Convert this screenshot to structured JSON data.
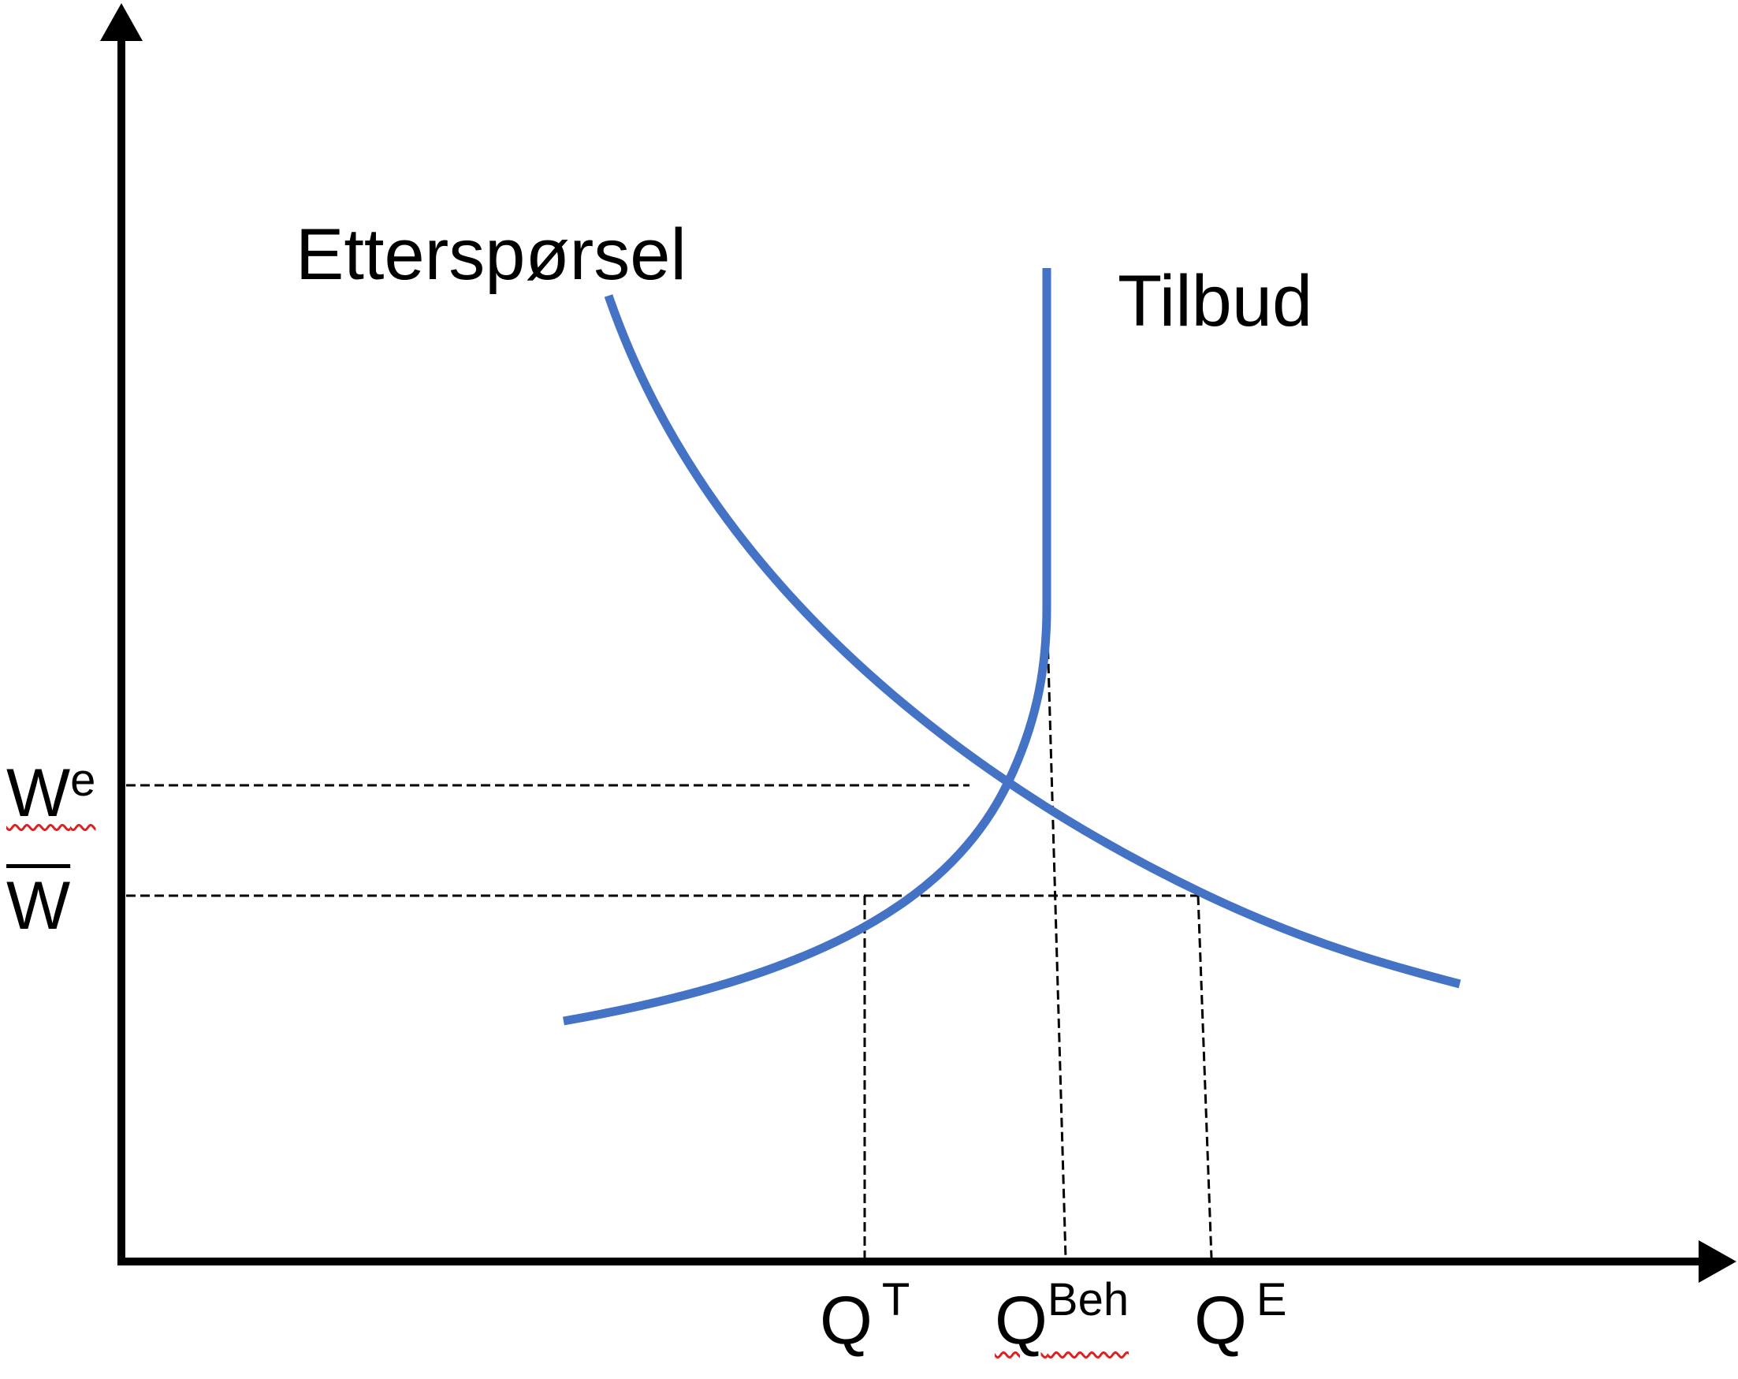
{
  "labels": {
    "demand": "Etterspørsel",
    "supply": "Tilbud",
    "wage_equilibrium": {
      "base": "W",
      "sup": "e"
    },
    "wage_bar": {
      "base": "W"
    },
    "q_t": {
      "base": "Q",
      "sup": "T"
    },
    "q_beh": {
      "base": "Q",
      "sup": "Beh"
    },
    "q_e": {
      "base": "Q",
      "sup": "E"
    }
  },
  "colors": {
    "curve": "#4472c4",
    "axis": "#000000",
    "guide": "#000000",
    "spellcheck": "#e02020"
  }
}
